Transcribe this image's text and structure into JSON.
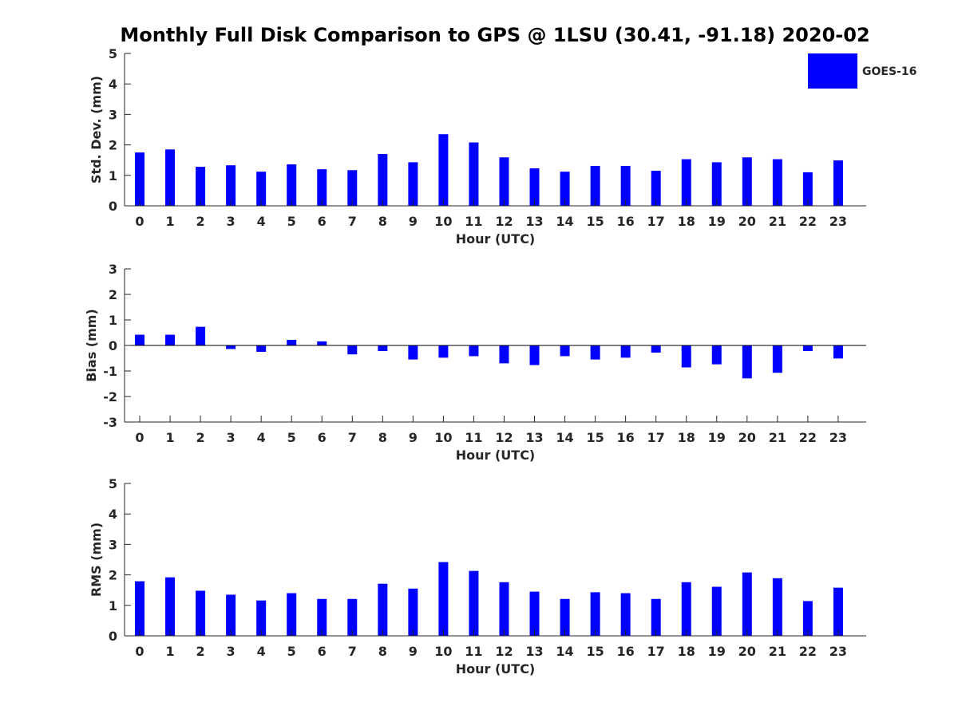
{
  "title": "Monthly Full Disk Comparison to GPS @ 1LSU (30.41, -91.18) 2020-02",
  "legend": {
    "label": "GOES-16",
    "color": "#0000ff"
  },
  "chart_data": [
    {
      "type": "bar",
      "name": "std-dev",
      "ylabel": "Std. Dev. (mm)",
      "xlabel": "Hour (UTC)",
      "ylim": [
        0,
        5
      ],
      "yticks": [
        0,
        1,
        2,
        3,
        4,
        5
      ],
      "categories": [
        "0",
        "1",
        "2",
        "3",
        "4",
        "5",
        "6",
        "7",
        "8",
        "9",
        "10",
        "11",
        "12",
        "13",
        "14",
        "15",
        "16",
        "17",
        "18",
        "19",
        "20",
        "21",
        "22",
        "23"
      ],
      "series": [
        {
          "name": "GOES-16",
          "values": [
            1.75,
            1.85,
            1.28,
            1.33,
            1.12,
            1.36,
            1.2,
            1.17,
            1.7,
            1.43,
            2.35,
            2.08,
            1.59,
            1.23,
            1.12,
            1.31,
            1.31,
            1.15,
            1.53,
            1.43,
            1.59,
            1.53,
            1.1,
            1.49
          ]
        }
      ]
    },
    {
      "type": "bar",
      "name": "bias",
      "ylabel": "Bias (mm)",
      "xlabel": "Hour (UTC)",
      "ylim": [
        -3,
        3
      ],
      "yticks": [
        -3,
        -2,
        -1,
        0,
        1,
        2,
        3
      ],
      "categories": [
        "0",
        "1",
        "2",
        "3",
        "4",
        "5",
        "6",
        "7",
        "8",
        "9",
        "10",
        "11",
        "12",
        "13",
        "14",
        "15",
        "16",
        "17",
        "18",
        "19",
        "20",
        "21",
        "22",
        "23"
      ],
      "series": [
        {
          "name": "GOES-16",
          "values": [
            0.42,
            0.42,
            0.73,
            -0.14,
            -0.25,
            0.22,
            0.16,
            -0.35,
            -0.22,
            -0.55,
            -0.48,
            -0.42,
            -0.7,
            -0.77,
            -0.42,
            -0.55,
            -0.48,
            -0.28,
            -0.86,
            -0.74,
            -1.29,
            -1.07,
            -0.22,
            -0.51
          ]
        }
      ]
    },
    {
      "type": "bar",
      "name": "rms",
      "ylabel": "RMS (mm)",
      "xlabel": "Hour (UTC)",
      "ylim": [
        0,
        5
      ],
      "yticks": [
        0,
        1,
        2,
        3,
        4,
        5
      ],
      "categories": [
        "0",
        "1",
        "2",
        "3",
        "4",
        "5",
        "6",
        "7",
        "8",
        "9",
        "10",
        "11",
        "12",
        "13",
        "14",
        "15",
        "16",
        "17",
        "18",
        "19",
        "20",
        "21",
        "22",
        "23"
      ],
      "series": [
        {
          "name": "GOES-16",
          "values": [
            1.79,
            1.92,
            1.48,
            1.35,
            1.16,
            1.4,
            1.21,
            1.21,
            1.71,
            1.55,
            2.42,
            2.13,
            1.76,
            1.45,
            1.21,
            1.43,
            1.4,
            1.21,
            1.76,
            1.61,
            2.08,
            1.89,
            1.14,
            1.58
          ]
        }
      ]
    }
  ]
}
